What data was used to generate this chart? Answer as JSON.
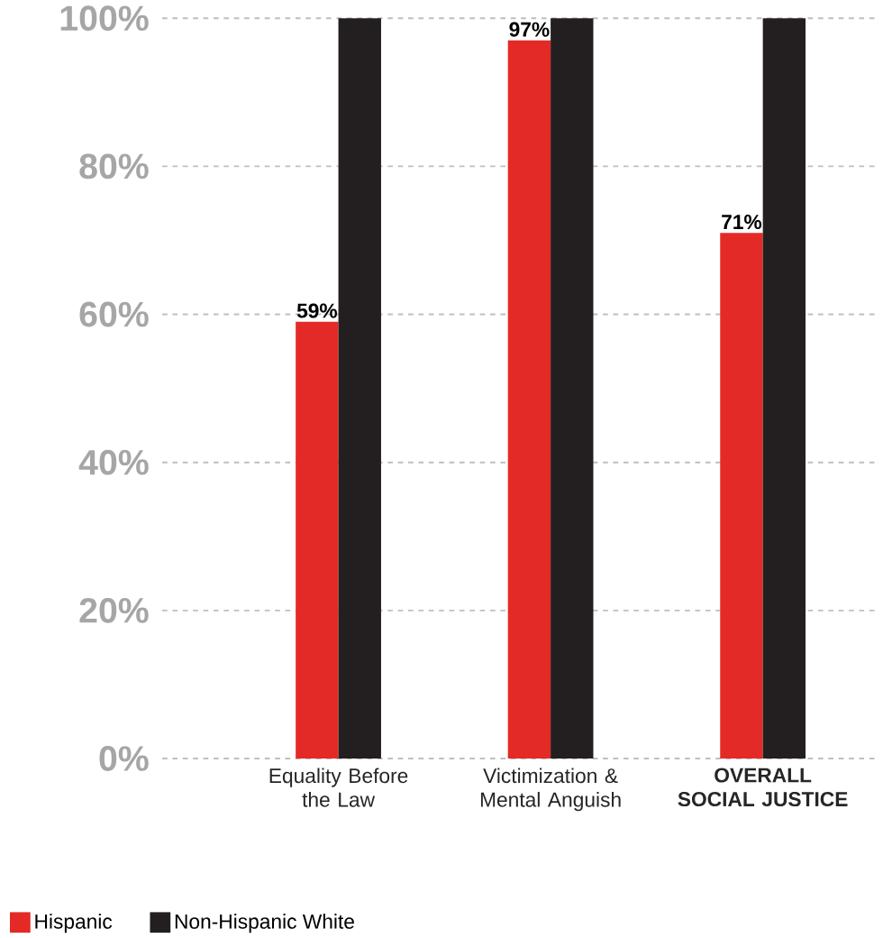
{
  "chart_data": {
    "type": "bar",
    "categories": [
      "Equality Before the Law",
      "Victimization & Mental Anguish",
      "**OVERALL SOCIAL JUSTICE**"
    ],
    "series": [
      {
        "name": "Hispanic",
        "color": "#e42a26",
        "values": [
          59,
          97,
          71
        ],
        "value_labels": [
          "59%",
          "97%",
          "71%"
        ]
      },
      {
        "name": "Non-Hispanic White",
        "color": "#231f20",
        "values": [
          100,
          100,
          100
        ]
      }
    ],
    "ylim": [
      0,
      100
    ],
    "yticks": [
      {
        "value": 0,
        "label": "0%"
      },
      {
        "value": 20,
        "label": "20%"
      },
      {
        "value": 40,
        "label": "40%"
      },
      {
        "value": 60,
        "label": "60%"
      },
      {
        "value": 80,
        "label": "80%"
      },
      {
        "value": 100,
        "label": "100%"
      }
    ],
    "grid": "y",
    "legend": "bottom left"
  }
}
